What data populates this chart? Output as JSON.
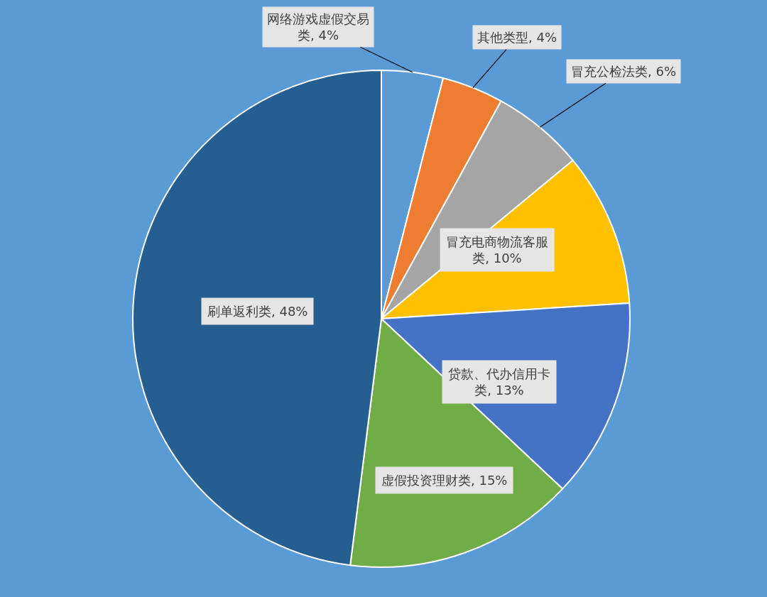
{
  "chart_data": {
    "type": "pie",
    "categories": [
      "网络游戏虚假交易类",
      "其他类型",
      "冒充公检法类",
      "冒充电商物流客服类",
      "贷款、代办信用卡类",
      "虚假投资理财类",
      "刷单返利类"
    ],
    "values": [
      4,
      4,
      6,
      10,
      13,
      15,
      48
    ],
    "value_labels": [
      "4%",
      "4%",
      "6%",
      "10%",
      "13%",
      "15%",
      "48%"
    ],
    "colors": [
      "#5b9bd5",
      "#ed7d31",
      "#a5a5a5",
      "#ffc000",
      "#4472c4",
      "#70ad47",
      "#255e91"
    ],
    "legend": false
  }
}
